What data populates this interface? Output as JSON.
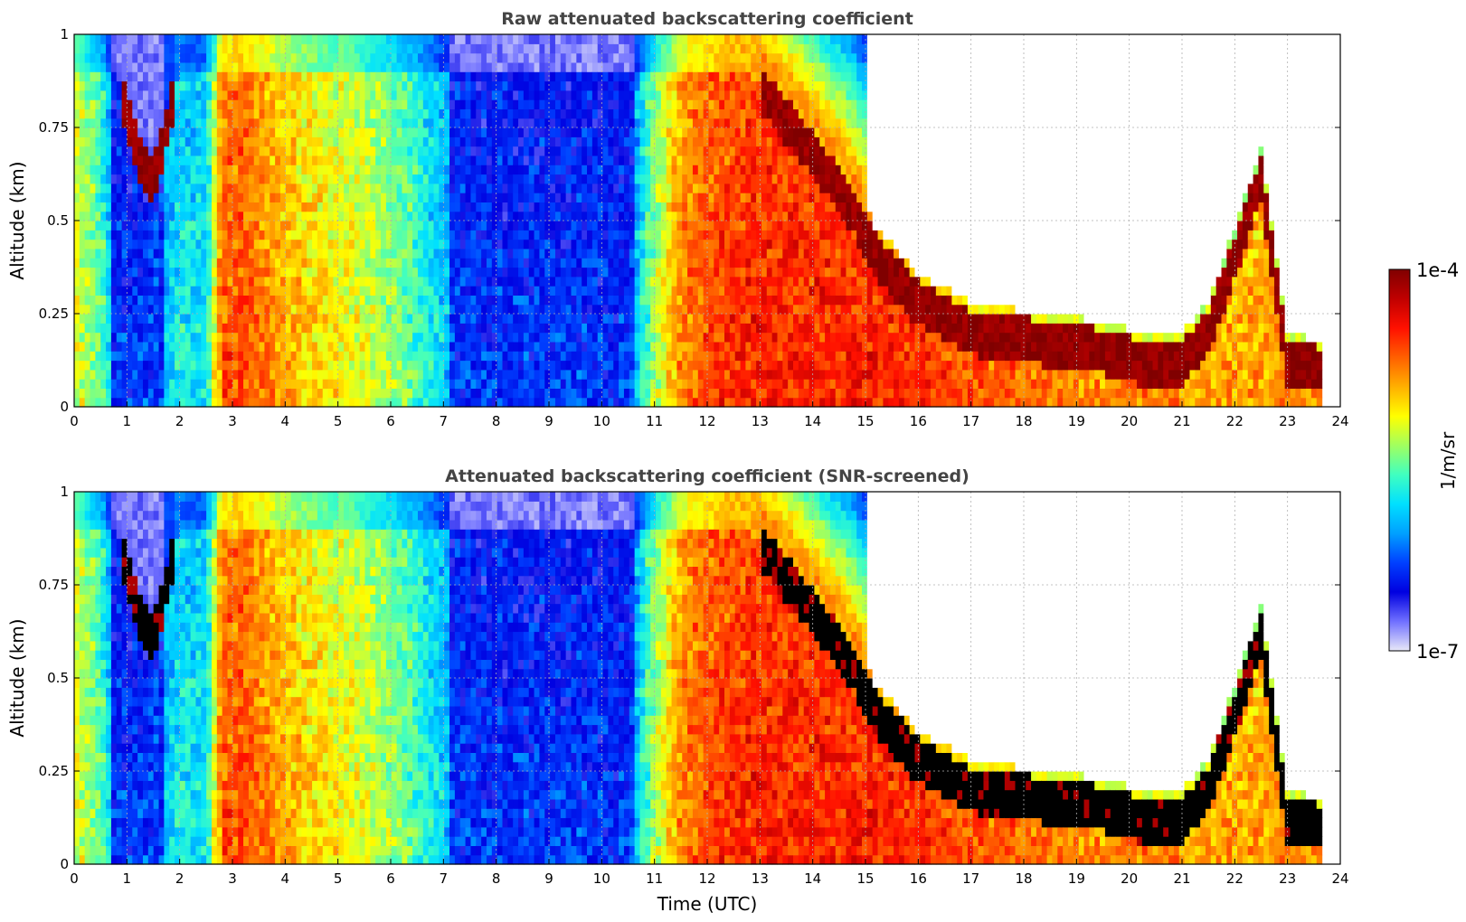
{
  "chart_data": [
    {
      "type": "heatmap",
      "title": "Raw attenuated backscattering coefficient",
      "xlabel": "",
      "ylabel": "Altitude (km)",
      "xlim": [
        0,
        24
      ],
      "ylim": [
        0,
        1
      ],
      "xticks": [
        "0",
        "1",
        "2",
        "3",
        "4",
        "5",
        "6",
        "7",
        "8",
        "9",
        "10",
        "11",
        "12",
        "13",
        "14",
        "15",
        "16",
        "17",
        "18",
        "19",
        "20",
        "21",
        "22",
        "23",
        "24"
      ],
      "yticks": [
        "0",
        "0.25",
        "0.5",
        "0.75",
        "1"
      ],
      "grid": true,
      "data_end_time": 23.65,
      "profile": {
        "time": [
          0,
          0.5,
          0.8,
          1.2,
          1.5,
          2.0,
          2.5,
          2.8,
          3.2,
          3.8,
          4.5,
          5.5,
          6.2,
          6.6,
          7.5,
          9.0,
          10.0,
          10.6,
          11.0,
          11.5,
          12.0,
          12.8,
          13.2,
          14.0,
          14.8,
          15.2,
          16.0,
          17.0,
          18.0,
          19.0,
          19.8,
          20.2,
          21.0,
          21.5,
          22.0,
          22.5,
          23.0,
          23.6
        ],
        "intensity": [
          0.62,
          0.5,
          0.3,
          0.28,
          0.3,
          0.42,
          0.4,
          0.78,
          0.8,
          0.72,
          0.66,
          0.6,
          0.52,
          0.45,
          0.28,
          0.25,
          0.3,
          0.34,
          0.55,
          0.74,
          0.8,
          0.84,
          0.84,
          0.84,
          0.84,
          0.84,
          0.82,
          0.78,
          0.76,
          0.74,
          0.72,
          0.74,
          0.72,
          0.72,
          0.7,
          0.7,
          0.72,
          0.72
        ],
        "cloud_base_km": [
          0.9,
          0.9,
          0.9,
          0.68,
          0.6,
          0.9,
          0.9,
          0.9,
          0.9,
          0.9,
          0.9,
          0.9,
          0.9,
          0.9,
          0.9,
          0.9,
          0.9,
          0.9,
          0.9,
          0.9,
          0.9,
          0.9,
          0.82,
          0.68,
          0.52,
          0.4,
          0.28,
          0.2,
          0.18,
          0.16,
          0.14,
          0.12,
          0.12,
          0.2,
          0.4,
          0.62,
          0.12,
          0.1
        ]
      }
    },
    {
      "type": "heatmap",
      "title": "Attenuated backscattering coefficient (SNR-screened)",
      "xlabel": "Time (UTC)",
      "ylabel": "Altitude (km)",
      "xlim": [
        0,
        24
      ],
      "ylim": [
        0,
        1
      ],
      "xticks": [
        "0",
        "1",
        "2",
        "3",
        "4",
        "5",
        "6",
        "7",
        "8",
        "9",
        "10",
        "11",
        "12",
        "13",
        "14",
        "15",
        "16",
        "17",
        "18",
        "19",
        "20",
        "21",
        "22",
        "23",
        "24"
      ],
      "yticks": [
        "0",
        "0.25",
        "0.5",
        "0.75",
        "1"
      ],
      "grid": true,
      "data_end_time": 23.65,
      "screened": true
    }
  ],
  "colorbar": {
    "max_label": "1e-4",
    "min_label": "1e-7",
    "unit_label": "1/m/sr",
    "colormap": "jet-with-faint-purple-floor",
    "stops": [
      "#e8e8f8",
      "#7070ff",
      "#0000e0",
      "#0040ff",
      "#00a0ff",
      "#00e0ff",
      "#40ffc0",
      "#a0ff60",
      "#ffff00",
      "#ffb000",
      "#ff6000",
      "#ff1000",
      "#c00000",
      "#800000"
    ]
  }
}
